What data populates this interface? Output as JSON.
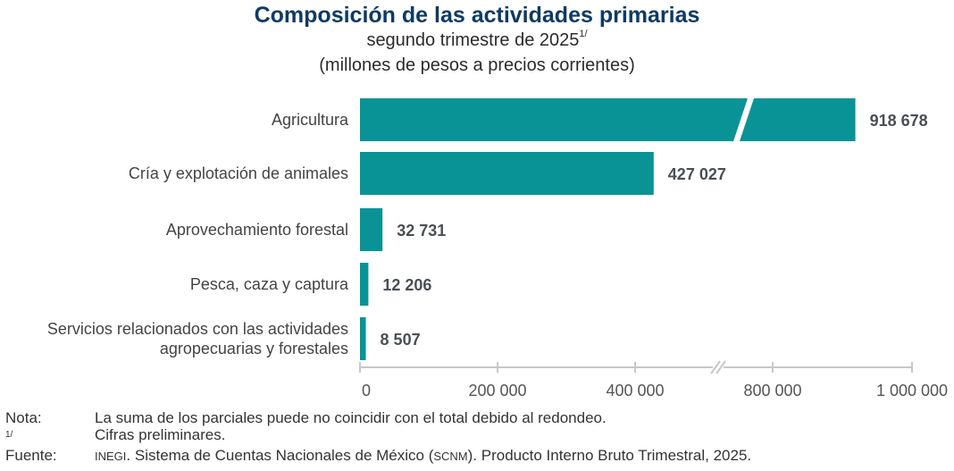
{
  "chart_data": {
    "type": "bar",
    "orientation": "horizontal",
    "title": "Composición de las actividades primarias",
    "subtitle": "segundo trimestre de 2025",
    "subtitle_footnote_mark": "1/",
    "units_label": "(millones de pesos a precios corrientes)",
    "categories": [
      "Agricultura",
      "Cría y explotación de animales",
      "Aprovechamiento forestal",
      "Pesca, caza y captura",
      "Servicios relacionados con las actividades agropecuarias y forestales"
    ],
    "category_lines": [
      [
        "Agricultura"
      ],
      [
        "Cría y explotación de animales"
      ],
      [
        "Aprovechamiento forestal"
      ],
      [
        "Pesca, caza y captura"
      ],
      [
        "Servicios relacionados con las actividades",
        "agropecuarias y forestales"
      ]
    ],
    "values": [
      918678,
      427027,
      32731,
      12206,
      8507
    ],
    "data_labels": [
      "918 678",
      "427 027",
      "32 731",
      "12 206",
      "8 507"
    ],
    "xlabel": "",
    "ylabel": "",
    "xlim": [
      0,
      1000000
    ],
    "axis_break": [
      500000,
      700000
    ],
    "x_ticks": [
      0,
      200000,
      400000,
      800000,
      1000000
    ],
    "x_tick_labels": [
      "0",
      "200 000",
      "400 000",
      "800 000",
      "1 000 000"
    ],
    "grid": false,
    "bar_color": "#0a9396"
  },
  "notes": {
    "nota_label": "Nota:",
    "nota_text": "La suma de los parciales puede no coincidir con el total debido al redondeo.",
    "footnote_mark": "1/",
    "footnote_text": "Cifras preliminares.",
    "fuente_label": "Fuente:",
    "fuente_org": "INEGI",
    "fuente_text_1": ". Sistema de Cuentas Nacionales de México (",
    "fuente_acronym": "SCNM",
    "fuente_text_2": "). Producto Interno Bruto Trimestral, 2025."
  }
}
